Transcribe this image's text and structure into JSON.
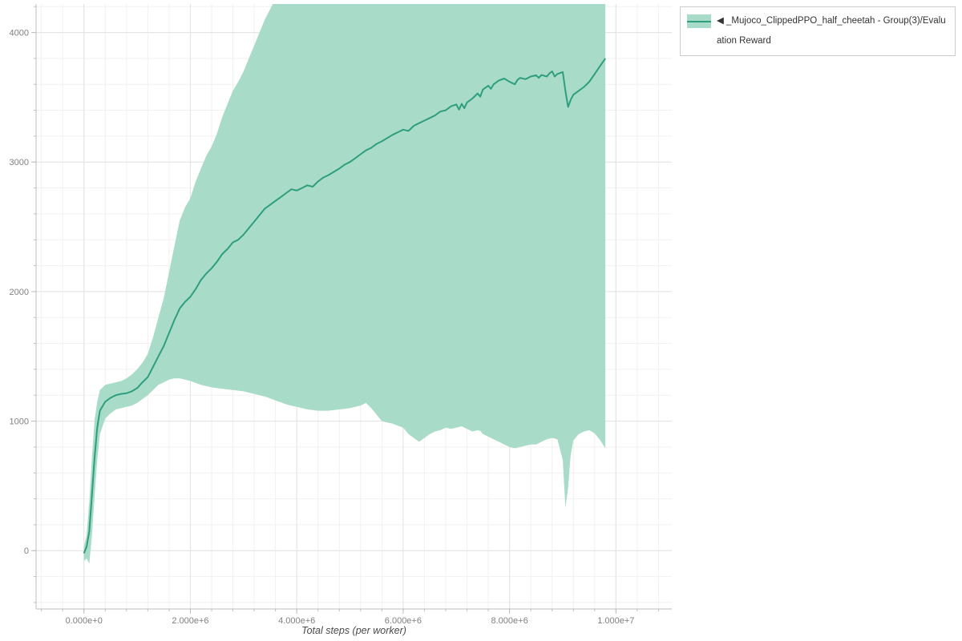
{
  "page": {
    "background": "#ffffff"
  },
  "legend": {
    "label": "◀ _Mujoco_ClippedPPO_half_cheetah - Group(3)/Evaluation Reward",
    "swatch_fill": "#a9dcc8",
    "swatch_line": "#2e9e7e",
    "border_color": "#cccccc"
  },
  "chart_data": {
    "type": "line",
    "title": "",
    "xlabel": "Total steps (per worker)",
    "ylabel": "",
    "grid": true,
    "legend_position": "top-right",
    "x_range": [
      -900000,
      11050000
    ],
    "y_range": [
      -450,
      4220
    ],
    "x_unit_multiplier": 1000000,
    "x_minor_step": 400000,
    "y_minor_step": 200,
    "x_ticks": [
      {
        "value": 0,
        "label": "0.000e+0"
      },
      {
        "value": 2000000,
        "label": "2.000e+6"
      },
      {
        "value": 4000000,
        "label": "4.000e+6"
      },
      {
        "value": 6000000,
        "label": "6.000e+6"
      },
      {
        "value": 8000000,
        "label": "8.000e+6"
      },
      {
        "value": 10000000,
        "label": "1.000e+7"
      }
    ],
    "y_ticks": [
      {
        "value": 0,
        "label": "0"
      },
      {
        "value": 1000,
        "label": "1000"
      },
      {
        "value": 2000,
        "label": "2000"
      },
      {
        "value": 3000,
        "label": "3000"
      },
      {
        "value": 4000,
        "label": "4000"
      }
    ],
    "series": [
      {
        "name": "_Mujoco_ClippedPPO_half_cheetah - Group(3)/Evaluation Reward",
        "line_color": "#2e9e7e",
        "band_color": "#a9dcc8",
        "x_e6": [
          0,
          0.05,
          0.1,
          0.15,
          0.2,
          0.25,
          0.3,
          0.4,
          0.5,
          0.6,
          0.7,
          0.8,
          0.9,
          1.0,
          1.1,
          1.2,
          1.3,
          1.4,
          1.5,
          1.6,
          1.7,
          1.8,
          1.9,
          2.0,
          2.1,
          2.2,
          2.3,
          2.4,
          2.5,
          2.6,
          2.7,
          2.8,
          2.9,
          3.0,
          3.1,
          3.2,
          3.3,
          3.4,
          3.5,
          3.6,
          3.7,
          3.8,
          3.9,
          4.0,
          4.1,
          4.2,
          4.3,
          4.4,
          4.5,
          4.6,
          4.7,
          4.8,
          4.9,
          5.0,
          5.1,
          5.2,
          5.3,
          5.4,
          5.5,
          5.6,
          5.7,
          5.8,
          5.9,
          6.0,
          6.1,
          6.2,
          6.3,
          6.4,
          6.5,
          6.6,
          6.7,
          6.8,
          6.9,
          7.0,
          7.05,
          7.1,
          7.15,
          7.2,
          7.3,
          7.4,
          7.45,
          7.5,
          7.6,
          7.65,
          7.7,
          7.8,
          7.9,
          8.0,
          8.1,
          8.15,
          8.2,
          8.3,
          8.4,
          8.5,
          8.55,
          8.6,
          8.7,
          8.75,
          8.8,
          8.85,
          8.9,
          9.0,
          9.05,
          9.1,
          9.15,
          9.2,
          9.3,
          9.4,
          9.5,
          9.6,
          9.7,
          9.8
        ],
        "mean": [
          -20,
          30,
          150,
          430,
          720,
          950,
          1080,
          1150,
          1180,
          1200,
          1210,
          1215,
          1230,
          1255,
          1300,
          1340,
          1420,
          1500,
          1580,
          1680,
          1780,
          1870,
          1920,
          1960,
          2020,
          2090,
          2140,
          2180,
          2230,
          2290,
          2330,
          2380,
          2400,
          2440,
          2490,
          2540,
          2590,
          2640,
          2670,
          2700,
          2730,
          2760,
          2790,
          2780,
          2800,
          2820,
          2810,
          2850,
          2880,
          2900,
          2925,
          2950,
          2980,
          3000,
          3030,
          3060,
          3090,
          3110,
          3140,
          3160,
          3185,
          3210,
          3230,
          3250,
          3240,
          3280,
          3300,
          3320,
          3340,
          3360,
          3390,
          3400,
          3430,
          3445,
          3405,
          3450,
          3415,
          3460,
          3490,
          3530,
          3505,
          3560,
          3590,
          3565,
          3600,
          3630,
          3645,
          3620,
          3600,
          3635,
          3650,
          3640,
          3660,
          3670,
          3650,
          3672,
          3660,
          3685,
          3700,
          3660,
          3680,
          3695,
          3550,
          3425,
          3480,
          3520,
          3550,
          3580,
          3620,
          3680,
          3740,
          3800
        ],
        "lower": [
          -80,
          -60,
          -100,
          120,
          420,
          700,
          900,
          1020,
          1060,
          1090,
          1100,
          1110,
          1120,
          1140,
          1170,
          1200,
          1240,
          1280,
          1300,
          1320,
          1330,
          1330,
          1320,
          1310,
          1295,
          1280,
          1270,
          1260,
          1255,
          1250,
          1245,
          1240,
          1235,
          1230,
          1220,
          1210,
          1200,
          1190,
          1175,
          1160,
          1145,
          1130,
          1120,
          1110,
          1100,
          1090,
          1085,
          1080,
          1080,
          1080,
          1085,
          1090,
          1095,
          1100,
          1110,
          1120,
          1140,
          1100,
          1050,
          1000,
          990,
          980,
          965,
          950,
          900,
          870,
          840,
          870,
          900,
          920,
          930,
          950,
          940,
          950,
          955,
          960,
          950,
          940,
          920,
          930,
          925,
          900,
          880,
          870,
          860,
          840,
          820,
          800,
          790,
          795,
          800,
          810,
          820,
          820,
          830,
          840,
          860,
          865,
          870,
          865,
          860,
          700,
          330,
          480,
          740,
          850,
          900,
          920,
          930,
          905,
          855,
          790
        ],
        "upper": [
          30,
          120,
          380,
          720,
          1010,
          1150,
          1240,
          1280,
          1290,
          1300,
          1310,
          1330,
          1360,
          1400,
          1450,
          1520,
          1650,
          1800,
          1950,
          2150,
          2350,
          2550,
          2650,
          2720,
          2850,
          2950,
          3050,
          3120,
          3220,
          3350,
          3450,
          3550,
          3620,
          3700,
          3800,
          3900,
          4000,
          4100,
          4180,
          4260,
          4320,
          4350,
          4350,
          4350,
          4350,
          4350,
          4350,
          4350,
          4350,
          4350,
          4350,
          4350,
          4350,
          4350,
          4350,
          4350,
          4350,
          4350,
          4350,
          4350,
          4350,
          4350,
          4350,
          4350,
          4350,
          4350,
          4350,
          4350,
          4350,
          4350,
          4350,
          4350,
          4350,
          4350,
          4350,
          4350,
          4350,
          4350,
          4350,
          4350,
          4350,
          4350,
          4350,
          4350,
          4350,
          4350,
          4350,
          4350,
          4350,
          4350,
          4350,
          4350,
          4350,
          4350,
          4350,
          4350,
          4350,
          4350,
          4350,
          4350,
          4350,
          4350,
          4350,
          4350,
          4350,
          4350,
          4350,
          4350,
          4350,
          4350,
          4350,
          4350
        ]
      }
    ],
    "style": {
      "grid_major_color": "#e3e3e3",
      "grid_minor_color": "#f1f1f1",
      "axis_color": "#bdbdbd",
      "tick_label_color": "#808080",
      "axis_label_color": "#4a4a4a"
    }
  }
}
